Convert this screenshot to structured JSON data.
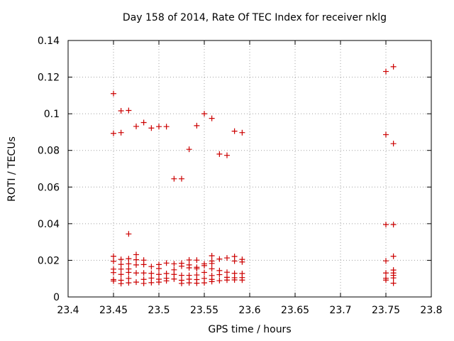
{
  "chart_data": {
    "type": "scatter",
    "title": "Day 158 of 2014, Rate Of TEC Index for receiver nklg",
    "xlabel": "GPS time / hours",
    "ylabel": "ROTI / TECUs",
    "xlim": [
      23.4,
      23.8
    ],
    "ylim": [
      0,
      0.14
    ],
    "xticks": [
      "23.4",
      "23.45",
      "23.5",
      "23.55",
      "23.6",
      "23.65",
      "23.7",
      "23.75",
      "23.8"
    ],
    "yticks": [
      "0",
      "0.02",
      "0.04",
      "0.06",
      "0.08",
      "0.1",
      "0.12",
      "0.14"
    ],
    "grid": true,
    "marker": "+",
    "color": "#cc0000",
    "series": [
      {
        "name": "ROTI",
        "points": [
          [
            23.45,
            0.111
          ],
          [
            23.45,
            0.0893
          ],
          [
            23.45,
            0.0222
          ],
          [
            23.45,
            0.0195
          ],
          [
            23.45,
            0.0152
          ],
          [
            23.45,
            0.0133
          ],
          [
            23.45,
            0.0095
          ],
          [
            23.45,
            0.0087
          ],
          [
            23.4583,
            0.1016
          ],
          [
            23.4583,
            0.0897
          ],
          [
            23.4583,
            0.0205
          ],
          [
            23.4583,
            0.0178
          ],
          [
            23.4583,
            0.0152
          ],
          [
            23.4583,
            0.0123
          ],
          [
            23.4583,
            0.0091
          ],
          [
            23.4583,
            0.0073
          ],
          [
            23.4667,
            0.1018
          ],
          [
            23.4667,
            0.0344
          ],
          [
            23.4667,
            0.0209
          ],
          [
            23.4667,
            0.0181
          ],
          [
            23.4667,
            0.0153
          ],
          [
            23.4667,
            0.0134
          ],
          [
            23.4667,
            0.0101
          ],
          [
            23.4667,
            0.0077
          ],
          [
            23.475,
            0.0931
          ],
          [
            23.475,
            0.0231
          ],
          [
            23.475,
            0.0203
          ],
          [
            23.475,
            0.0175
          ],
          [
            23.475,
            0.0131
          ],
          [
            23.475,
            0.0081
          ],
          [
            23.4833,
            0.0952
          ],
          [
            23.4833,
            0.0201
          ],
          [
            23.4833,
            0.0177
          ],
          [
            23.4833,
            0.0131
          ],
          [
            23.4833,
            0.0096
          ],
          [
            23.4833,
            0.0074
          ],
          [
            23.4917,
            0.0922
          ],
          [
            23.4917,
            0.0166
          ],
          [
            23.4917,
            0.0129
          ],
          [
            23.4917,
            0.0103
          ],
          [
            23.4917,
            0.0078
          ],
          [
            23.5,
            0.093
          ],
          [
            23.5,
            0.0177
          ],
          [
            23.5,
            0.0155
          ],
          [
            23.5,
            0.0123
          ],
          [
            23.5,
            0.0097
          ],
          [
            23.5,
            0.0081
          ],
          [
            23.5083,
            0.093
          ],
          [
            23.5083,
            0.0185
          ],
          [
            23.5083,
            0.0128
          ],
          [
            23.5083,
            0.0102
          ],
          [
            23.5083,
            0.0088
          ],
          [
            23.5167,
            0.0645
          ],
          [
            23.5167,
            0.0181
          ],
          [
            23.5167,
            0.0148
          ],
          [
            23.5167,
            0.0123
          ],
          [
            23.5167,
            0.0098
          ],
          [
            23.525,
            0.0645
          ],
          [
            23.525,
            0.0184
          ],
          [
            23.525,
            0.0168
          ],
          [
            23.525,
            0.0118
          ],
          [
            23.525,
            0.0091
          ],
          [
            23.525,
            0.0074
          ],
          [
            23.5333,
            0.0806
          ],
          [
            23.5333,
            0.0202
          ],
          [
            23.5333,
            0.0175
          ],
          [
            23.5333,
            0.0159
          ],
          [
            23.5333,
            0.0118
          ],
          [
            23.5333,
            0.0097
          ],
          [
            23.5333,
            0.0077
          ],
          [
            23.5417,
            0.0935
          ],
          [
            23.5417,
            0.0201
          ],
          [
            23.5417,
            0.0162
          ],
          [
            23.5417,
            0.0154
          ],
          [
            23.5417,
            0.012
          ],
          [
            23.5417,
            0.0095
          ],
          [
            23.5417,
            0.0075
          ],
          [
            23.55,
            0.1
          ],
          [
            23.55,
            0.0181
          ],
          [
            23.55,
            0.0171
          ],
          [
            23.55,
            0.0134
          ],
          [
            23.55,
            0.0101
          ],
          [
            23.55,
            0.0077
          ],
          [
            23.5583,
            0.0975
          ],
          [
            23.5583,
            0.0225
          ],
          [
            23.5583,
            0.0196
          ],
          [
            23.5583,
            0.0183
          ],
          [
            23.5583,
            0.0154
          ],
          [
            23.5583,
            0.0117
          ],
          [
            23.5583,
            0.0096
          ],
          [
            23.5583,
            0.0084
          ],
          [
            23.5667,
            0.078
          ],
          [
            23.5667,
            0.0207
          ],
          [
            23.5667,
            0.0144
          ],
          [
            23.5667,
            0.0122
          ],
          [
            23.5667,
            0.0089
          ],
          [
            23.575,
            0.0773
          ],
          [
            23.575,
            0.0213
          ],
          [
            23.575,
            0.0135
          ],
          [
            23.575,
            0.0107
          ],
          [
            23.575,
            0.0092
          ],
          [
            23.5833,
            0.0905
          ],
          [
            23.5833,
            0.0221
          ],
          [
            23.5833,
            0.0196
          ],
          [
            23.5833,
            0.0129
          ],
          [
            23.5833,
            0.0105
          ],
          [
            23.5833,
            0.0093
          ],
          [
            23.5917,
            0.0897
          ],
          [
            23.5917,
            0.0205
          ],
          [
            23.5917,
            0.0191
          ],
          [
            23.5917,
            0.0128
          ],
          [
            23.5917,
            0.0106
          ],
          [
            23.5917,
            0.0092
          ],
          [
            23.75,
            0.1231
          ],
          [
            23.75,
            0.0886
          ],
          [
            23.75,
            0.0395
          ],
          [
            23.75,
            0.0197
          ],
          [
            23.75,
            0.0131
          ],
          [
            23.75,
            0.0102
          ],
          [
            23.75,
            0.0092
          ],
          [
            23.7583,
            0.1257
          ],
          [
            23.7583,
            0.0837
          ],
          [
            23.7583,
            0.0395
          ],
          [
            23.7583,
            0.0222
          ],
          [
            23.7583,
            0.0147
          ],
          [
            23.7583,
            0.0131
          ],
          [
            23.7583,
            0.0118
          ],
          [
            23.7583,
            0.0104
          ],
          [
            23.7583,
            0.0075
          ]
        ]
      }
    ]
  }
}
